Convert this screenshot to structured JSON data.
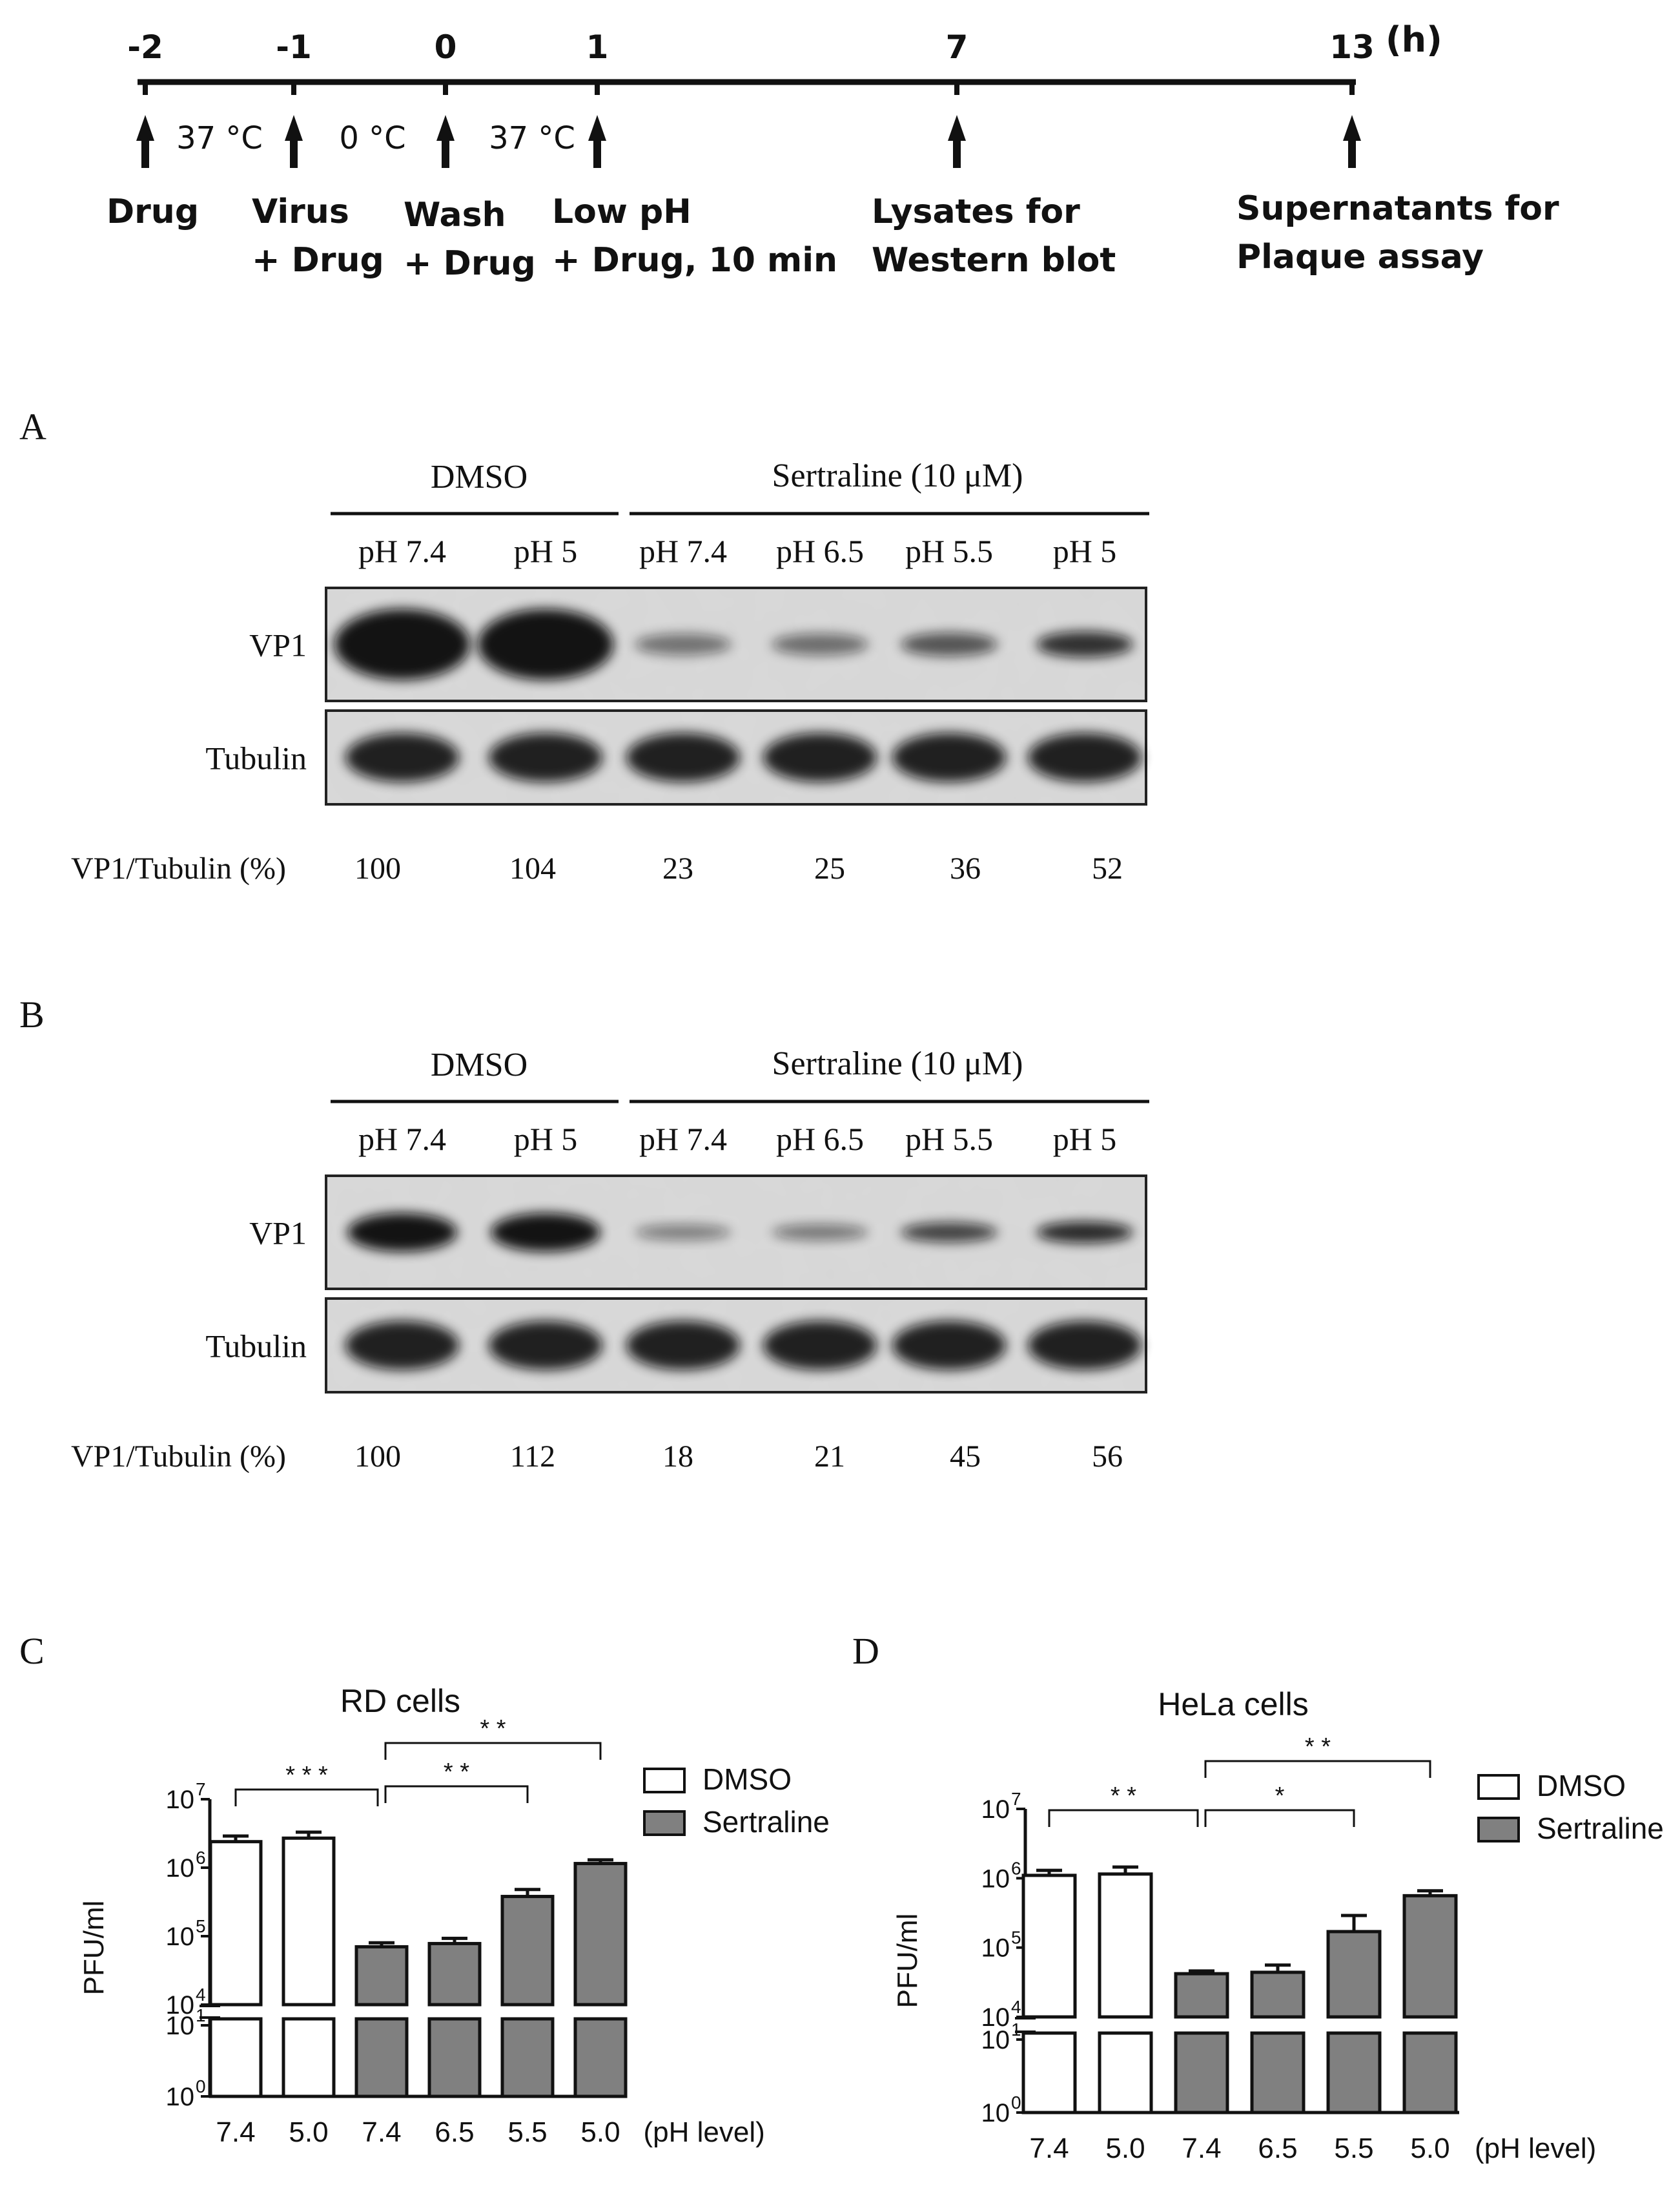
{
  "timeline": {
    "ticks": [
      "-2",
      "-1",
      "0",
      "1",
      "7",
      "13"
    ],
    "unit": "(h)",
    "temps": [
      "37 °C",
      "0 °C",
      "37 °C"
    ],
    "steps": [
      [
        "Drug"
      ],
      [
        "Virus",
        "+ Drug"
      ],
      [
        "Wash",
        "+ Drug"
      ],
      [
        "Low pH",
        "+ Drug, 10 min"
      ],
      [
        "Lysates for",
        "Western blot"
      ],
      [
        "Supernatants for",
        "Plaque assay"
      ]
    ]
  },
  "blots": [
    {
      "panel": "A",
      "groups": [
        "DMSO",
        "Sertraline (10 μM)"
      ],
      "lanes": [
        "pH 7.4",
        "pH 5",
        "pH 7.4",
        "pH 6.5",
        "pH 5.5",
        "pH 5"
      ],
      "bands": [
        "VP1",
        "Tubulin"
      ],
      "ratio_label": "VP1/Tubulin (%)",
      "ratios": [
        "100",
        "104",
        "23",
        "25",
        "36",
        "52"
      ]
    },
    {
      "panel": "B",
      "groups": [
        "DMSO",
        "Sertraline (10 μM)"
      ],
      "lanes": [
        "pH 7.4",
        "pH 5",
        "pH 7.4",
        "pH 6.5",
        "pH 5.5",
        "pH 5"
      ],
      "bands": [
        "VP1",
        "Tubulin"
      ],
      "ratio_label": "VP1/Tubulin (%)",
      "ratios": [
        "100",
        "112",
        "18",
        "21",
        "45",
        "56"
      ]
    }
  ],
  "chart_data": [
    {
      "panel": "C",
      "type": "bar",
      "title": "RD cells",
      "ylabel": "PFU/ml",
      "xlabel": "(pH level)",
      "yscale": "log",
      "yaxis_break": true,
      "yticks_upper": [
        "10",
        "10",
        "10",
        "10"
      ],
      "yticks_upper_exp": [
        "4",
        "5",
        "6",
        "7"
      ],
      "yticks_lower": [
        "10",
        "10"
      ],
      "yticks_lower_exp": [
        "0",
        "1"
      ],
      "ylim_upper": [
        10000,
        10000000
      ],
      "categories": [
        "7.4",
        "5.0",
        "7.4",
        "6.5",
        "5.5",
        "5.0"
      ],
      "series": [
        {
          "name": "DMSO",
          "color": "#ffffff",
          "indices": [
            0,
            1
          ]
        },
        {
          "name": "Sertraline",
          "color": "#808080",
          "indices": [
            2,
            3,
            4,
            5
          ]
        }
      ],
      "values": [
        2400000,
        2700000,
        70000,
        78000,
        380000,
        1150000
      ],
      "errors": [
        500000,
        600000,
        10000,
        15000,
        100000,
        150000
      ],
      "annotations": [
        {
          "from": 0,
          "to": 2,
          "label": "* * *"
        },
        {
          "from": 2,
          "to": 4,
          "label": "* *"
        },
        {
          "from": 2,
          "to": 5,
          "label": "* *"
        }
      ],
      "legend": "right"
    },
    {
      "panel": "D",
      "type": "bar",
      "title": "HeLa cells",
      "ylabel": "PFU/ml",
      "xlabel": "(pH level)",
      "yscale": "log",
      "yaxis_break": true,
      "yticks_upper": [
        "10",
        "10",
        "10",
        "10"
      ],
      "yticks_upper_exp": [
        "4",
        "5",
        "6",
        "7"
      ],
      "yticks_lower": [
        "10",
        "10"
      ],
      "yticks_lower_exp": [
        "0",
        "1"
      ],
      "ylim_upper": [
        10000,
        10000000
      ],
      "categories": [
        "7.4",
        "5.0",
        "7.4",
        "6.5",
        "5.5",
        "5.0"
      ],
      "series": [
        {
          "name": "DMSO",
          "color": "#ffffff",
          "indices": [
            0,
            1
          ]
        },
        {
          "name": "Sertraline",
          "color": "#808080",
          "indices": [
            2,
            3,
            4,
            5
          ]
        }
      ],
      "values": [
        1100000,
        1150000,
        42000,
        44000,
        170000,
        560000
      ],
      "errors": [
        200000,
        300000,
        4000,
        12000,
        120000,
        100000
      ],
      "annotations": [
        {
          "from": 0,
          "to": 2,
          "label": "* *"
        },
        {
          "from": 2,
          "to": 4,
          "label": "*"
        },
        {
          "from": 2,
          "to": 5,
          "label": "* *"
        }
      ],
      "legend": "right"
    }
  ]
}
